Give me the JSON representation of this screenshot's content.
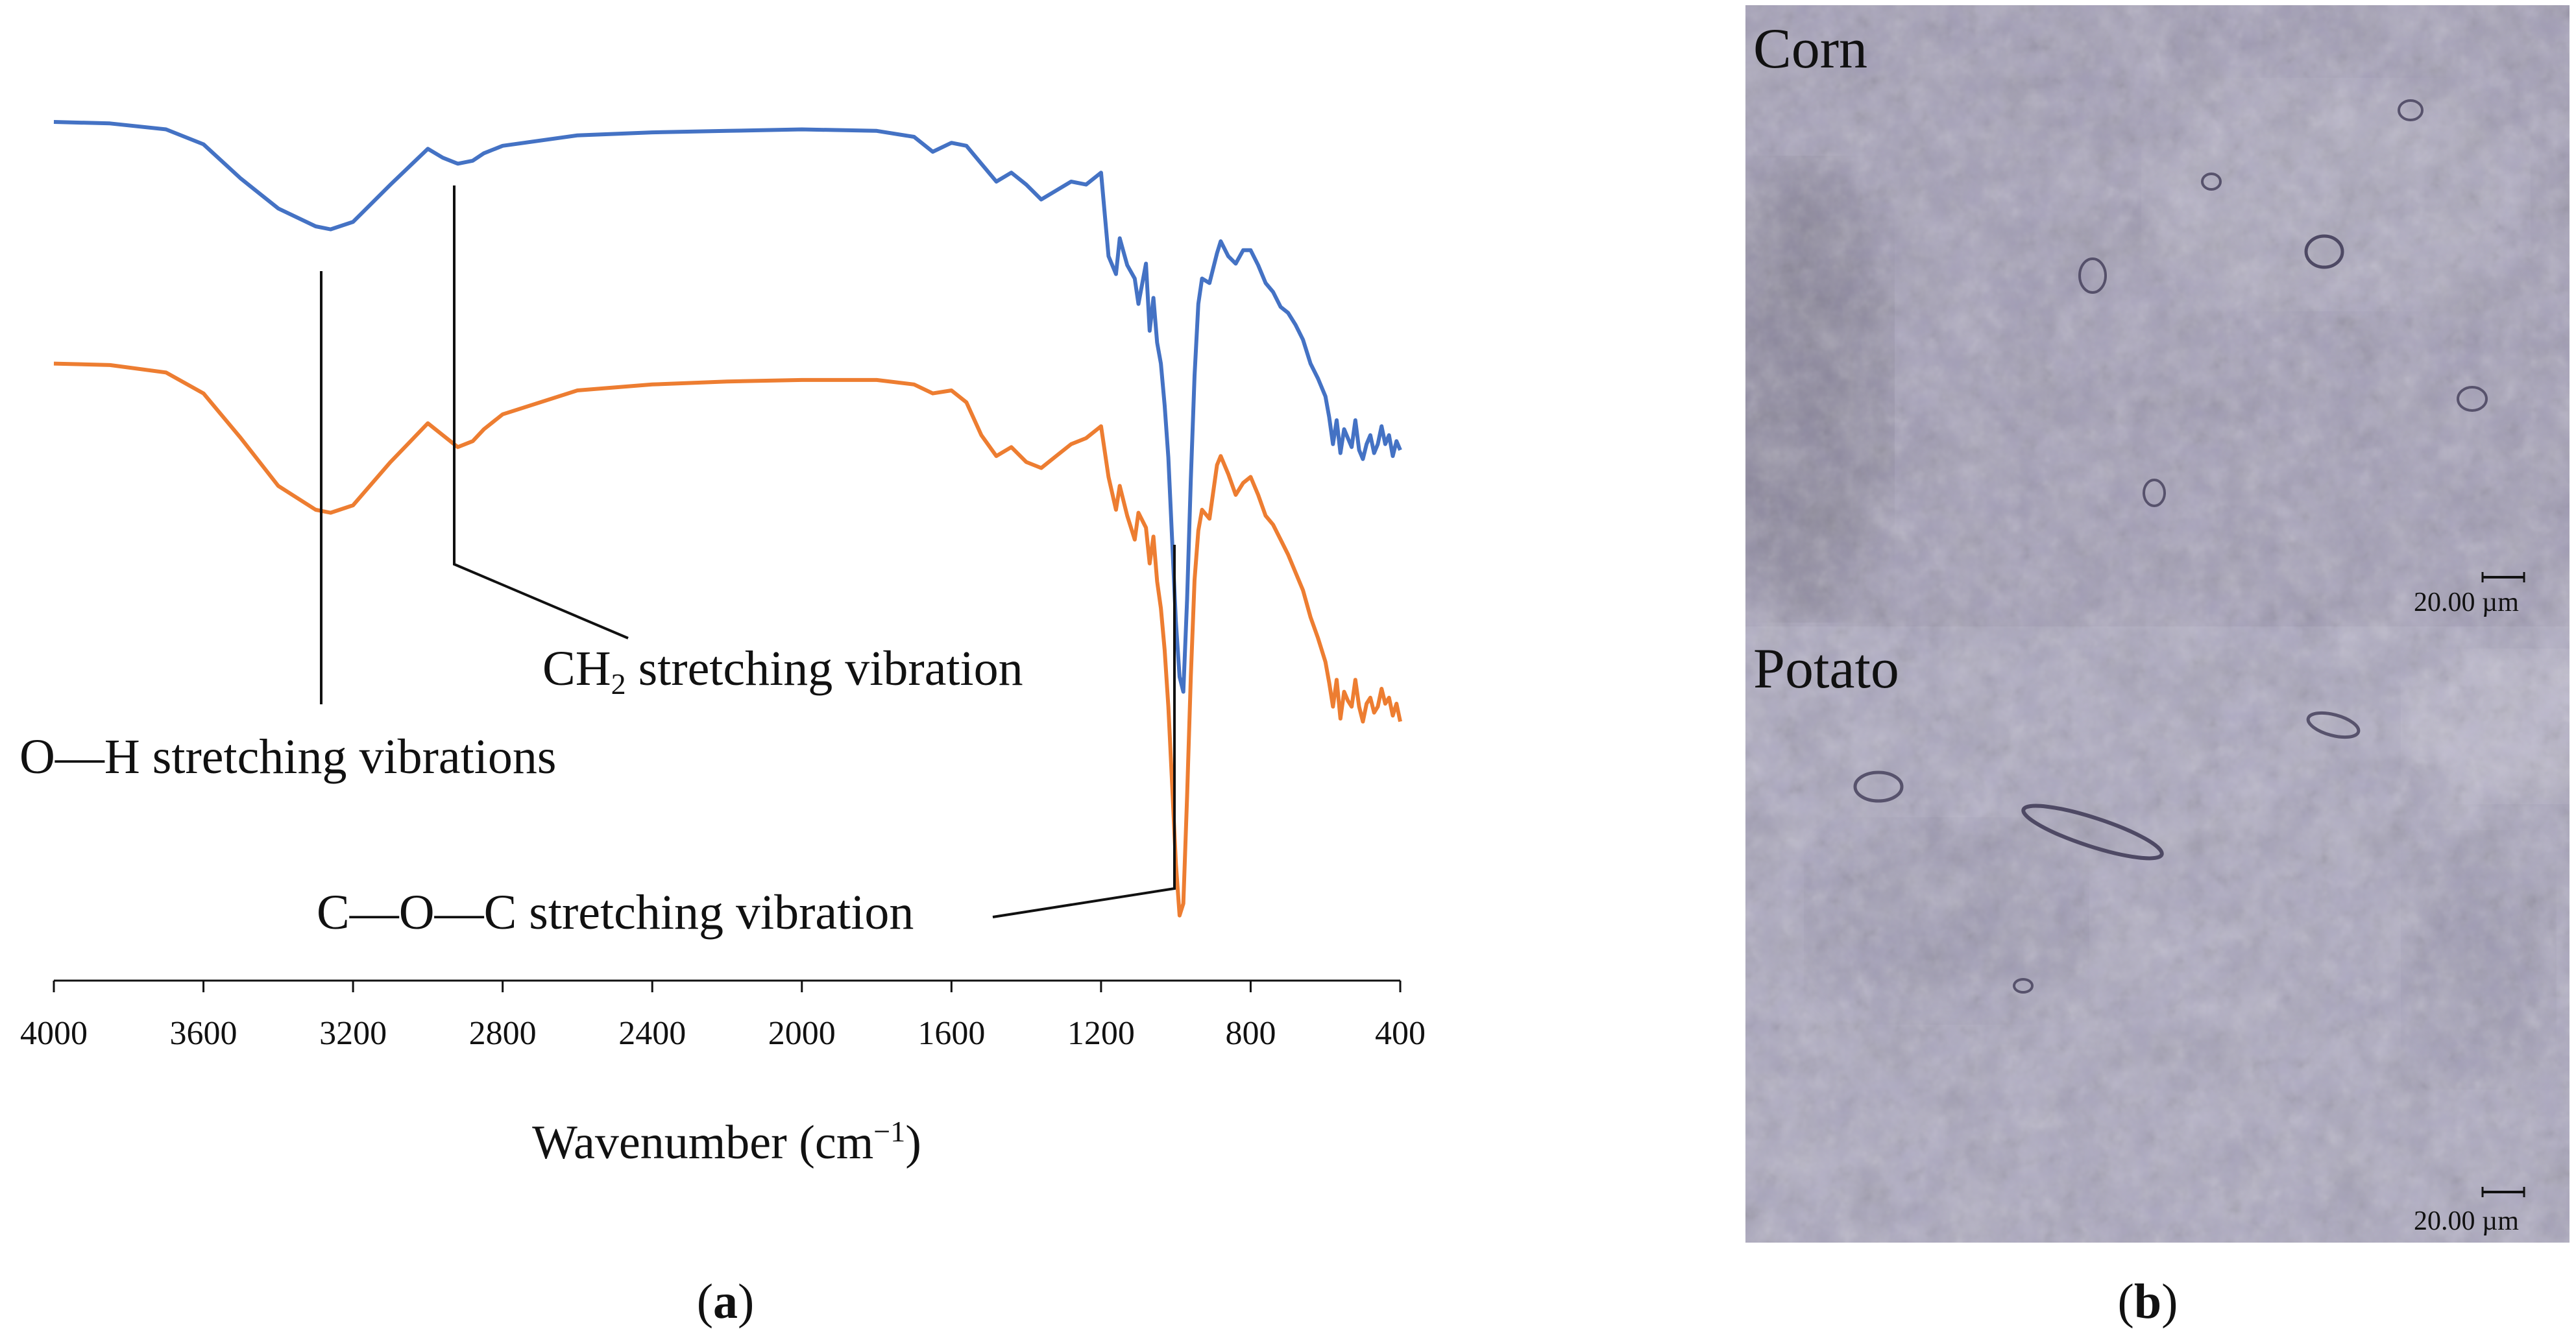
{
  "chart_data": {
    "type": "line",
    "xlabel_main": "Wavenumber (cm",
    "xlabel_sup": "−1",
    "xlabel_close": ")",
    "ylabel": "",
    "xlim": [
      4000,
      400
    ],
    "x_ticks": [
      "4000",
      "3600",
      "3200",
      "2800",
      "2400",
      "2000",
      "1600",
      "1200",
      "800",
      "400"
    ],
    "series": [
      {
        "name": "Corn",
        "color": "#4472c4",
        "offset": 0,
        "x": [
          4000,
          3850,
          3700,
          3600,
          3500,
          3400,
          3300,
          3260,
          3200,
          3100,
          3000,
          2960,
          2920,
          2880,
          2850,
          2800,
          2600,
          2400,
          2200,
          2000,
          1800,
          1700,
          1650,
          1600,
          1560,
          1520,
          1480,
          1440,
          1400,
          1360,
          1320,
          1280,
          1240,
          1200,
          1180,
          1160,
          1150,
          1130,
          1110,
          1100,
          1080,
          1070,
          1060,
          1050,
          1040,
          1030,
          1020,
          1010,
          1000,
          990,
          980,
          970,
          960,
          950,
          940,
          930,
          910,
          890,
          880,
          860,
          840,
          820,
          800,
          780,
          760,
          740,
          720,
          700,
          680,
          660,
          640,
          620,
          600,
          590,
          580,
          570,
          560,
          550,
          540,
          530,
          520,
          510,
          500,
          490,
          480,
          470,
          460,
          450,
          440,
          430,
          420,
          410,
          400
        ],
        "y": [
          1.0,
          0.99,
          0.95,
          0.85,
          0.62,
          0.42,
          0.3,
          0.28,
          0.33,
          0.58,
          0.82,
          0.76,
          0.72,
          0.74,
          0.79,
          0.84,
          0.91,
          0.93,
          0.94,
          0.95,
          0.94,
          0.9,
          0.8,
          0.86,
          0.84,
          0.72,
          0.6,
          0.66,
          0.58,
          0.48,
          0.54,
          0.6,
          0.58,
          0.66,
          0.1,
          -0.02,
          0.22,
          0.04,
          -0.05,
          -0.22,
          0.05,
          -0.4,
          -0.18,
          -0.48,
          -0.62,
          -0.9,
          -1.25,
          -1.8,
          -2.35,
          -2.72,
          -2.82,
          -2.2,
          -1.4,
          -0.7,
          -0.22,
          -0.05,
          -0.08,
          0.12,
          0.2,
          0.1,
          0.05,
          0.14,
          0.14,
          0.04,
          -0.08,
          -0.14,
          -0.24,
          -0.28,
          -0.36,
          -0.46,
          -0.62,
          -0.72,
          -0.84,
          -0.98,
          -1.16,
          -1.0,
          -1.22,
          -1.06,
          -1.12,
          -1.18,
          -1.0,
          -1.2,
          -1.26,
          -1.16,
          -1.1,
          -1.22,
          -1.16,
          -1.04,
          -1.16,
          -1.1,
          -1.24,
          -1.14,
          -1.2
        ]
      },
      {
        "name": "Potato",
        "color": "#ed7d31",
        "offset": -1.62,
        "x": [
          4000,
          3850,
          3700,
          3600,
          3500,
          3400,
          3300,
          3260,
          3200,
          3100,
          3000,
          2960,
          2920,
          2880,
          2850,
          2800,
          2600,
          2400,
          2200,
          2000,
          1800,
          1700,
          1650,
          1600,
          1560,
          1520,
          1480,
          1440,
          1400,
          1360,
          1320,
          1280,
          1240,
          1200,
          1180,
          1160,
          1150,
          1130,
          1110,
          1100,
          1080,
          1070,
          1060,
          1050,
          1040,
          1030,
          1020,
          1010,
          1000,
          990,
          980,
          970,
          960,
          950,
          940,
          930,
          910,
          890,
          880,
          860,
          840,
          820,
          800,
          780,
          760,
          740,
          720,
          700,
          680,
          660,
          640,
          620,
          600,
          590,
          580,
          570,
          560,
          550,
          540,
          530,
          520,
          510,
          500,
          490,
          480,
          470,
          460,
          450,
          440,
          430,
          420,
          410,
          400
        ],
        "y": [
          1.0,
          0.99,
          0.94,
          0.8,
          0.5,
          0.18,
          0.02,
          0.0,
          0.05,
          0.34,
          0.6,
          0.52,
          0.44,
          0.48,
          0.56,
          0.66,
          0.82,
          0.86,
          0.88,
          0.89,
          0.89,
          0.86,
          0.8,
          0.82,
          0.74,
          0.52,
          0.38,
          0.44,
          0.34,
          0.3,
          0.38,
          0.46,
          0.5,
          0.58,
          0.24,
          0.02,
          0.18,
          -0.02,
          -0.18,
          0.0,
          -0.1,
          -0.34,
          -0.16,
          -0.46,
          -0.64,
          -0.92,
          -1.3,
          -1.82,
          -2.35,
          -2.7,
          -2.62,
          -1.9,
          -1.1,
          -0.45,
          -0.12,
          0.02,
          -0.04,
          0.32,
          0.38,
          0.26,
          0.12,
          0.2,
          0.24,
          0.12,
          -0.02,
          -0.08,
          -0.18,
          -0.28,
          -0.4,
          -0.52,
          -0.7,
          -0.84,
          -1.0,
          -1.14,
          -1.3,
          -1.12,
          -1.38,
          -1.2,
          -1.26,
          -1.3,
          -1.12,
          -1.3,
          -1.4,
          -1.28,
          -1.24,
          -1.34,
          -1.3,
          -1.18,
          -1.28,
          -1.24,
          -1.36,
          -1.28,
          -1.4
        ]
      }
    ],
    "annotations": [
      {
        "key": "oh",
        "text": "O—H stretching vibrations",
        "x": 3280
      },
      {
        "key": "ch2",
        "text_main": "CH",
        "text_sub": "2",
        "text_rest": " stretching vibration",
        "x": 2920
      },
      {
        "key": "coc",
        "text": "C—O—C stretching vibration",
        "x": 1000
      }
    ],
    "panel_label": "a"
  },
  "micrographs": {
    "panel_label": "b",
    "corn": {
      "title": "Corn",
      "scale_label": "20.00 µm"
    },
    "potato": {
      "title": "Potato",
      "scale_label": "20.00 µm"
    }
  },
  "colors": {
    "corn_line": "#4472c4",
    "potato_line": "#ed7d31",
    "micro_bg": "#a19cb7"
  }
}
